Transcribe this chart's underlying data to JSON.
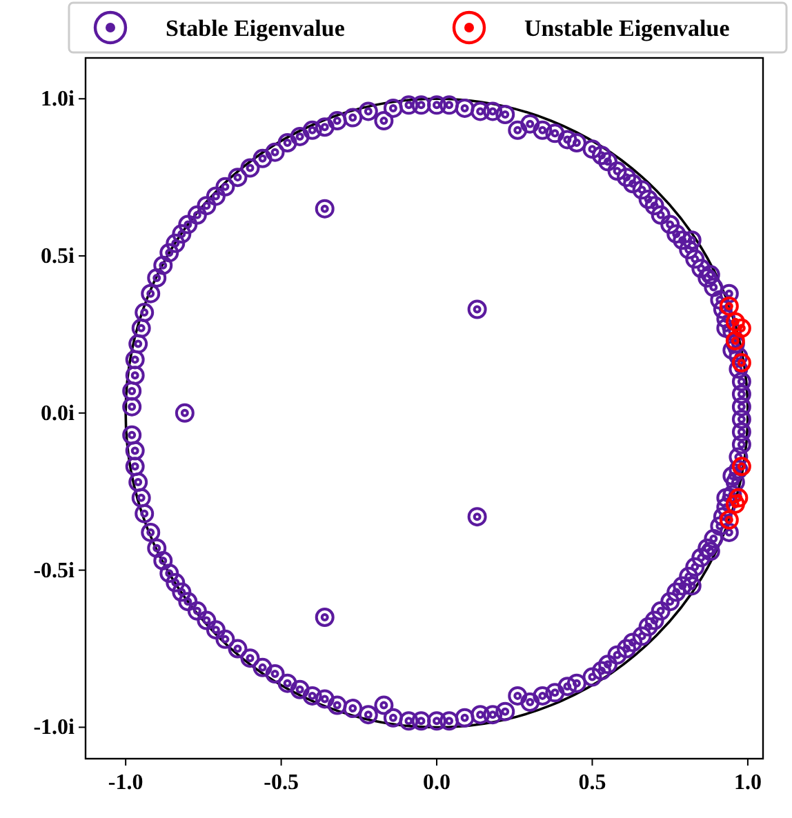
{
  "chart_data": {
    "type": "scatter",
    "xlim": [
      -1.129,
      1.049
    ],
    "ylim": [
      -1.1,
      1.13
    ],
    "xticks": [
      {
        "value": -1,
        "label": "-1.0"
      },
      {
        "value": -0.5,
        "label": "-0.5"
      },
      {
        "value": 0,
        "label": "0.0"
      },
      {
        "value": 0.5,
        "label": "0.5"
      },
      {
        "value": 1,
        "label": "1.0"
      }
    ],
    "yticks": [
      {
        "value": -1,
        "label": "-1.0i"
      },
      {
        "value": -0.5,
        "label": "-0.5i"
      },
      {
        "value": 0,
        "label": "0.0i"
      },
      {
        "value": 0.5,
        "label": "0.5i"
      },
      {
        "value": 1,
        "label": "1.0i"
      }
    ],
    "legend": "top",
    "grid": false,
    "series": [
      {
        "name": "Stable Eigenvalue",
        "marker": "circle",
        "color": "#5b1a9e",
        "x": [
          -0.98,
          -0.98,
          -0.97,
          -0.97,
          -0.96,
          -0.95,
          -0.94,
          -0.92,
          -0.9,
          -0.88,
          -0.86,
          -0.84,
          -0.82,
          -0.8,
          -0.77,
          -0.74,
          -0.71,
          -0.68,
          -0.64,
          -0.6,
          -0.56,
          -0.52,
          -0.48,
          -0.44,
          -0.4,
          -0.36,
          -0.32,
          -0.27,
          -0.22,
          -0.17,
          -0.14,
          -0.09,
          -0.05,
          0,
          0.04,
          0.09,
          0.14,
          0.18,
          0.22,
          0.26,
          0.3,
          0.34,
          0.38,
          0.42,
          0.45,
          0.5,
          0.53,
          0.55,
          0.58,
          0.61,
          0.63,
          0.66,
          0.68,
          0.7,
          0.72,
          0.75,
          0.77,
          0.79,
          0.81,
          0.83,
          0.85,
          0.87,
          0.89,
          0.91,
          0.92,
          0.93,
          0.95,
          0.96,
          0.97,
          0.97,
          0.98,
          0.98,
          0.98,
          0.93,
          0.95,
          0.94,
          0.88,
          0.82,
          -0.36,
          0.13,
          -0.98,
          -0.97,
          -0.97,
          -0.96,
          -0.95,
          -0.94,
          -0.92,
          -0.9,
          -0.88,
          -0.86,
          -0.84,
          -0.82,
          -0.8,
          -0.77,
          -0.74,
          -0.71,
          -0.68,
          -0.64,
          -0.6,
          -0.56,
          -0.52,
          -0.48,
          -0.44,
          -0.4,
          -0.36,
          -0.32,
          -0.27,
          -0.22,
          -0.17,
          -0.14,
          -0.09,
          -0.05,
          0,
          0.04,
          0.09,
          0.14,
          0.18,
          0.22,
          0.26,
          0.3,
          0.34,
          0.38,
          0.42,
          0.45,
          0.5,
          0.53,
          0.55,
          0.58,
          0.61,
          0.63,
          0.66,
          0.68,
          0.7,
          0.72,
          0.75,
          0.77,
          0.79,
          0.81,
          0.83,
          0.85,
          0.87,
          0.89,
          0.91,
          0.92,
          0.93,
          0.95,
          0.96,
          0.97,
          0.97,
          0.98,
          0.98,
          0.98,
          0.93,
          0.95,
          0.94,
          0.88,
          0.82,
          -0.36,
          0.13,
          -0.81
        ],
        "values": [
          0.02,
          0.07,
          0.12,
          0.17,
          0.22,
          0.27,
          0.32,
          0.38,
          0.43,
          0.47,
          0.51,
          0.54,
          0.57,
          0.6,
          0.63,
          0.66,
          0.69,
          0.72,
          0.75,
          0.78,
          0.81,
          0.83,
          0.86,
          0.88,
          0.9,
          0.91,
          0.93,
          0.94,
          0.96,
          0.93,
          0.97,
          0.98,
          0.98,
          0.98,
          0.98,
          0.97,
          0.96,
          0.96,
          0.95,
          0.9,
          0.92,
          0.9,
          0.89,
          0.87,
          0.86,
          0.84,
          0.82,
          0.8,
          0.77,
          0.75,
          0.73,
          0.71,
          0.68,
          0.66,
          0.63,
          0.6,
          0.57,
          0.55,
          0.52,
          0.49,
          0.46,
          0.43,
          0.4,
          0.36,
          0.33,
          0.3,
          0.26,
          0.22,
          0.18,
          0.14,
          0.1,
          0.06,
          0.02,
          0.27,
          0.2,
          0.38,
          0.44,
          0.55,
          0.65,
          0.33,
          -0.07,
          -0.12,
          -0.17,
          -0.22,
          -0.27,
          -0.32,
          -0.38,
          -0.43,
          -0.47,
          -0.51,
          -0.54,
          -0.57,
          -0.6,
          -0.63,
          -0.66,
          -0.69,
          -0.72,
          -0.75,
          -0.78,
          -0.81,
          -0.83,
          -0.86,
          -0.88,
          -0.9,
          -0.91,
          -0.93,
          -0.94,
          -0.96,
          -0.93,
          -0.97,
          -0.98,
          -0.98,
          -0.98,
          -0.98,
          -0.97,
          -0.96,
          -0.96,
          -0.95,
          -0.9,
          -0.92,
          -0.9,
          -0.89,
          -0.87,
          -0.86,
          -0.84,
          -0.82,
          -0.8,
          -0.77,
          -0.75,
          -0.73,
          -0.71,
          -0.68,
          -0.66,
          -0.63,
          -0.6,
          -0.57,
          -0.55,
          -0.52,
          -0.49,
          -0.46,
          -0.43,
          -0.4,
          -0.36,
          -0.33,
          -0.3,
          -0.26,
          -0.22,
          -0.18,
          -0.14,
          -0.1,
          -0.06,
          -0.02,
          -0.27,
          -0.2,
          -0.38,
          -0.44,
          -0.55,
          -0.65,
          -0.33,
          0
        ]
      },
      {
        "name": "Unstable Eigenvalue",
        "marker": "circle",
        "color": "#ff0000",
        "x": [
          0.94,
          0.96,
          0.98,
          0.96,
          0.98,
          0.94,
          0.96,
          0.97,
          0.98
        ],
        "values": [
          0.34,
          0.29,
          0.27,
          0.23,
          0.16,
          -0.34,
          -0.29,
          -0.27,
          -0.17
        ]
      }
    ]
  }
}
